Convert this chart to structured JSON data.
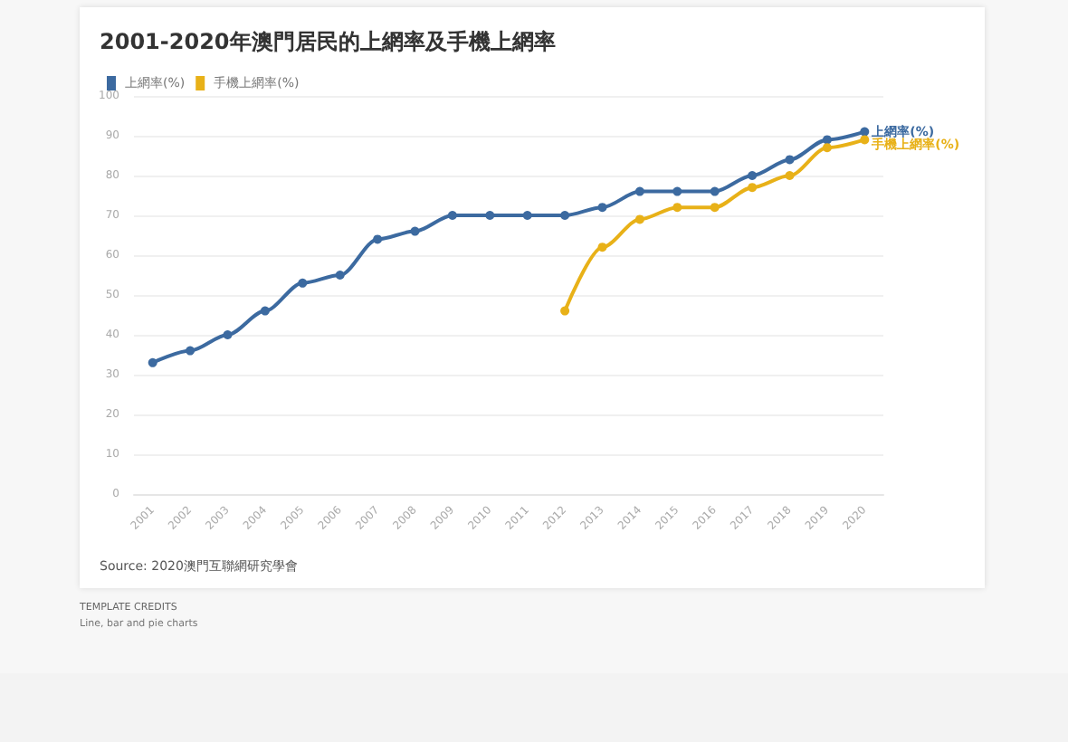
{
  "chart_data": {
    "type": "line",
    "title": "2001-2020年澳門居民的上網率及手機上網率",
    "categories": [
      "2001",
      "2002",
      "2003",
      "2004",
      "2005",
      "2006",
      "2007",
      "2008",
      "2009",
      "2010",
      "2011",
      "2012",
      "2013",
      "2014",
      "2015",
      "2016",
      "2017",
      "2018",
      "2019",
      "2020"
    ],
    "series": [
      {
        "name": "上網率(%)",
        "color": "#3c6aa0",
        "values": [
          33,
          36,
          40,
          46,
          53,
          55,
          64,
          66,
          70,
          70,
          70,
          70,
          72,
          76,
          76,
          76,
          80,
          84,
          89,
          91
        ]
      },
      {
        "name": "手機上網率(%)",
        "color": "#e8b118",
        "values": [
          null,
          null,
          null,
          null,
          null,
          null,
          null,
          null,
          null,
          null,
          null,
          46,
          62,
          69,
          72,
          72,
          77,
          80,
          87,
          89
        ]
      }
    ],
    "ylim": [
      0,
      100
    ],
    "yticks": [
      0,
      10,
      20,
      30,
      40,
      50,
      60,
      70,
      80,
      90,
      100
    ],
    "grid": "y",
    "legend": "top left",
    "marker": "circle",
    "line_style": "solid",
    "annotations": [
      "Source: 2020澳門互聯網研究學會",
      "TEMPLATE CREDITS",
      "Line, bar and pie charts"
    ]
  }
}
